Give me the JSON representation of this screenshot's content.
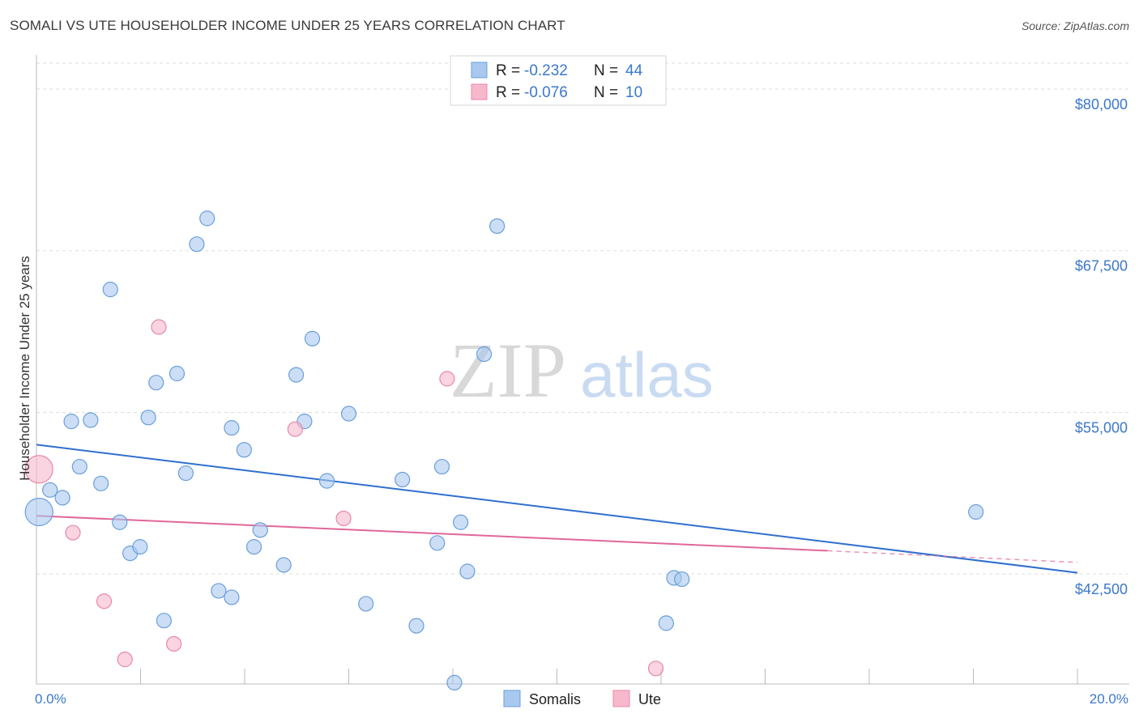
{
  "title": "SOMALI VS UTE HOUSEHOLDER INCOME UNDER 25 YEARS CORRELATION CHART",
  "source": "Source: ZipAtlas.com",
  "watermark": {
    "zip": "ZIP",
    "atlas": "atlas"
  },
  "legend_top": [
    {
      "r_label": "R =",
      "r_value": "-0.232",
      "n_label": "N =",
      "n_value": "44",
      "color": "#a8c8f0",
      "stroke": "#6a9fd8"
    },
    {
      "r_label": "R =",
      "r_value": "-0.076",
      "n_label": "N =",
      "n_value": "10",
      "color": "#f7b8cb",
      "stroke": "#e889a6"
    }
  ],
  "legend_bottom": [
    {
      "label": "Somalis",
      "color": "#a8c8f0",
      "stroke": "#6a9fd8"
    },
    {
      "label": "Ute",
      "color": "#f7b8cb",
      "stroke": "#e889a6"
    }
  ],
  "chart_data": {
    "type": "scatter",
    "title": "SOMALI VS UTE HOUSEHOLDER INCOME UNDER 25 YEARS CORRELATION CHART",
    "xlabel": "",
    "ylabel": "Householder Income Under 25 years",
    "xlim": [
      0,
      20
    ],
    "ylim": [
      34000,
      82000
    ],
    "x_tick_labels": [
      {
        "value": 0,
        "label": "0.0%"
      },
      {
        "value": 20,
        "label": "20.0%"
      }
    ],
    "y_ticks": [
      {
        "value": 42500,
        "label": "$42,500"
      },
      {
        "value": 55000,
        "label": "$55,000"
      },
      {
        "value": 67500,
        "label": "$67,500"
      },
      {
        "value": 80000,
        "label": "$80,000"
      }
    ],
    "grid": true,
    "series": [
      {
        "name": "Somalis",
        "color": "#a8c8f0",
        "stroke": "#6a9fd8",
        "line_color": "#2f6fce",
        "trend": {
          "x": [
            0,
            20
          ],
          "y": [
            52500,
            42600
          ]
        },
        "points": [
          {
            "x": 0.05,
            "y": 47300,
            "size": "large"
          },
          {
            "x": 0.26,
            "y": 49000
          },
          {
            "x": 0.5,
            "y": 48400
          },
          {
            "x": 0.67,
            "y": 54300
          },
          {
            "x": 0.83,
            "y": 50800
          },
          {
            "x": 1.04,
            "y": 54400
          },
          {
            "x": 1.24,
            "y": 49500
          },
          {
            "x": 1.42,
            "y": 64500
          },
          {
            "x": 1.6,
            "y": 46500
          },
          {
            "x": 1.8,
            "y": 44100
          },
          {
            "x": 1.99,
            "y": 44600
          },
          {
            "x": 2.15,
            "y": 54600
          },
          {
            "x": 2.3,
            "y": 57300
          },
          {
            "x": 2.45,
            "y": 38900
          },
          {
            "x": 2.7,
            "y": 58000
          },
          {
            "x": 2.87,
            "y": 50300
          },
          {
            "x": 3.08,
            "y": 68000
          },
          {
            "x": 3.28,
            "y": 70000
          },
          {
            "x": 3.5,
            "y": 41200
          },
          {
            "x": 3.75,
            "y": 40700
          },
          {
            "x": 3.75,
            "y": 53800
          },
          {
            "x": 3.99,
            "y": 52100
          },
          {
            "x": 4.18,
            "y": 44600
          },
          {
            "x": 4.3,
            "y": 45900
          },
          {
            "x": 4.75,
            "y": 43200
          },
          {
            "x": 4.99,
            "y": 57900
          },
          {
            "x": 5.15,
            "y": 54300
          },
          {
            "x": 5.3,
            "y": 60700
          },
          {
            "x": 5.58,
            "y": 49700
          },
          {
            "x": 6.0,
            "y": 54900
          },
          {
            "x": 6.33,
            "y": 40200
          },
          {
            "x": 7.03,
            "y": 49800
          },
          {
            "x": 7.3,
            "y": 38500
          },
          {
            "x": 7.7,
            "y": 44900
          },
          {
            "x": 7.79,
            "y": 50800
          },
          {
            "x": 8.03,
            "y": 34100
          },
          {
            "x": 8.15,
            "y": 46500
          },
          {
            "x": 8.28,
            "y": 42700
          },
          {
            "x": 8.6,
            "y": 59500
          },
          {
            "x": 8.85,
            "y": 69400
          },
          {
            "x": 12.1,
            "y": 38700
          },
          {
            "x": 12.25,
            "y": 42200
          },
          {
            "x": 12.4,
            "y": 42100
          },
          {
            "x": 18.05,
            "y": 47300
          }
        ]
      },
      {
        "name": "Ute",
        "color": "#f7b8cb",
        "stroke": "#e889a6",
        "line_color": "#e0679a",
        "trend": {
          "x": [
            0,
            15.2
          ],
          "y": [
            47000,
            44300
          ]
        },
        "trend_dashed": {
          "x": [
            15.2,
            20
          ],
          "y": [
            44300,
            43400
          ]
        },
        "points": [
          {
            "x": 0.05,
            "y": 50600,
            "size": "large"
          },
          {
            "x": 0.7,
            "y": 45700
          },
          {
            "x": 1.3,
            "y": 40400
          },
          {
            "x": 1.7,
            "y": 35900
          },
          {
            "x": 2.35,
            "y": 61600
          },
          {
            "x": 2.64,
            "y": 37100
          },
          {
            "x": 4.97,
            "y": 53700
          },
          {
            "x": 5.9,
            "y": 46800
          },
          {
            "x": 7.89,
            "y": 57600
          },
          {
            "x": 11.9,
            "y": 35200
          }
        ]
      }
    ]
  }
}
